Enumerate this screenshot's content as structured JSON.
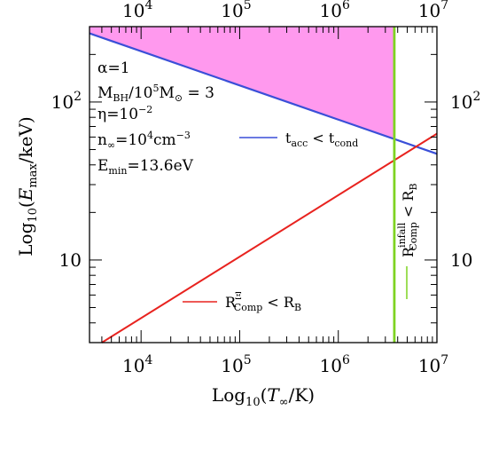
{
  "chart_data": {
    "type": "line",
    "title": "",
    "xscale": "log",
    "yscale": "log",
    "xlim": [
      3000,
      10000000
    ],
    "ylim": [
      3,
      300
    ],
    "xlabel": {
      "pre": "Log",
      "sub": "10",
      "open": "(",
      "var": "T",
      "varsub": "∞",
      "rest": "/K)"
    },
    "ylabel": {
      "pre": "Log",
      "sub": "10",
      "open": "(",
      "var": "E",
      "varsub": "max",
      "rest": "/keV)"
    },
    "xticks": [
      {
        "value": 10000,
        "base": "10",
        "exp": "4"
      },
      {
        "value": 100000,
        "base": "10",
        "exp": "5"
      },
      {
        "value": 1000000,
        "base": "10",
        "exp": "6"
      },
      {
        "value": 10000000,
        "base": "10",
        "exp": "7"
      }
    ],
    "yticks": [
      {
        "value": 10,
        "base": "10",
        "exp": ""
      },
      {
        "value": 100,
        "base": "10",
        "exp": "2"
      }
    ],
    "parameters": {
      "alpha": {
        "sym": "α",
        "eq": "=1"
      },
      "mass": {
        "m": "M",
        "msub": "BH",
        "slash": "/10",
        "exp": "5",
        "m2": "M",
        "m2sub": "⊙",
        "eq": " = 3"
      },
      "eta": {
        "sym": "η",
        "eq": "=10",
        "exp": "−2"
      },
      "density": {
        "n": "n",
        "nsub": "∞",
        "eq": "=10",
        "exp": "4",
        "unit": "cm",
        "unitexp": "−3"
      },
      "emin": {
        "e": "E",
        "esub": "min",
        "eq": "=13.6eV"
      }
    },
    "series": [
      {
        "color": "#3a4fd8",
        "points": [
          [
            3000,
            272
          ],
          [
            10000000,
            47
          ]
        ],
        "legend": {
          "t1": "t",
          "t1sub": "acc",
          "op": " < ",
          "t2": "t",
          "t2sub": "cond"
        }
      },
      {
        "color": "#e8231f",
        "points": [
          [
            4000,
            3
          ],
          [
            10000000,
            63
          ]
        ],
        "legend": {
          "r": "R",
          "rsup": "Ξ",
          "rsub": "Comp",
          "op": " < ",
          "r2": "R",
          "r2sub": "B"
        }
      },
      {
        "color": "#7ed321",
        "x": 3700000,
        "legend": {
          "r": "R",
          "rsup": "infall",
          "rsub": "Comp",
          "op": " < ",
          "r2": "R",
          "r2sub": "B"
        }
      }
    ],
    "shaded_region": {
      "color": "#ff99ee",
      "description_x_max": 3700000
    },
    "grid": false,
    "legend": "inline"
  }
}
